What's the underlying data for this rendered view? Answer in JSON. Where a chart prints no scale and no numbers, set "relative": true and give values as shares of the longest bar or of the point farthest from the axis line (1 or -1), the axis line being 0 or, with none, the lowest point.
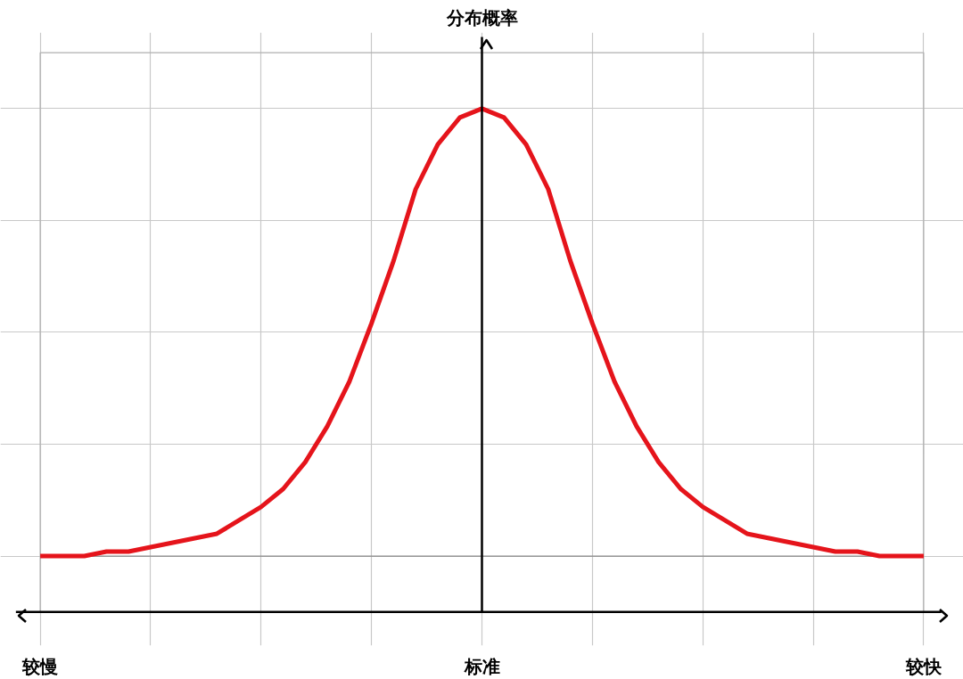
{
  "chart_data": {
    "type": "line",
    "relative": true,
    "ylabel": "分布概率",
    "categories": [
      "较慢",
      null,
      null,
      null,
      null,
      null,
      null,
      null,
      null,
      null,
      null,
      null,
      null,
      null,
      null,
      null,
      null,
      null,
      null,
      null,
      "标准",
      null,
      null,
      null,
      null,
      null,
      null,
      null,
      null,
      null,
      null,
      null,
      null,
      null,
      null,
      null,
      null,
      null,
      null,
      null,
      "较快"
    ],
    "series": [
      {
        "color": "#e5141b",
        "values": [
          0,
          0,
          0,
          0.01,
          0.01,
          0.02,
          0.03,
          0.04,
          0.05,
          0.08,
          0.11,
          0.15,
          0.21,
          0.29,
          0.39,
          0.52,
          0.66,
          0.82,
          0.92,
          0.98,
          1,
          0.98,
          0.92,
          0.82,
          0.66,
          0.52,
          0.39,
          0.29,
          0.21,
          0.15,
          0.11,
          0.08,
          0.05,
          0.04,
          0.03,
          0.02,
          0.01,
          0.01,
          0,
          0,
          0
        ]
      }
    ],
    "grid": true,
    "line_style": "solid",
    "marker": "none"
  }
}
